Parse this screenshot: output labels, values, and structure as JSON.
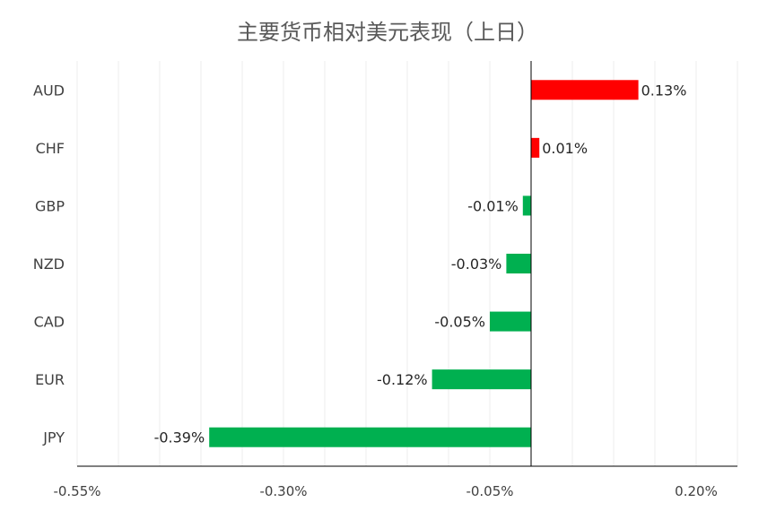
{
  "chart_data": {
    "type": "bar",
    "orientation": "horizontal",
    "title": "主要货币相对美元表现（上日）",
    "categories": [
      "AUD",
      "CHF",
      "GBP",
      "NZD",
      "CAD",
      "EUR",
      "JPY"
    ],
    "values": [
      0.13,
      0.01,
      -0.01,
      -0.03,
      -0.05,
      -0.12,
      -0.39
    ],
    "data_labels": [
      "0.13%",
      "0.01%",
      "-0.01%",
      "-0.03%",
      "-0.05%",
      "-0.12%",
      "-0.39%"
    ],
    "xlim": [
      -0.55,
      0.25
    ],
    "x_ticks": [
      -0.55,
      -0.3,
      -0.05,
      0.2
    ],
    "x_tick_labels": [
      "-0.55%",
      "-0.30%",
      "-0.05%",
      "0.20%"
    ],
    "grid": true,
    "colors": {
      "positive": "#ff0000",
      "negative": "#00b050",
      "grid": "#ececec",
      "axis": "#000000"
    }
  }
}
